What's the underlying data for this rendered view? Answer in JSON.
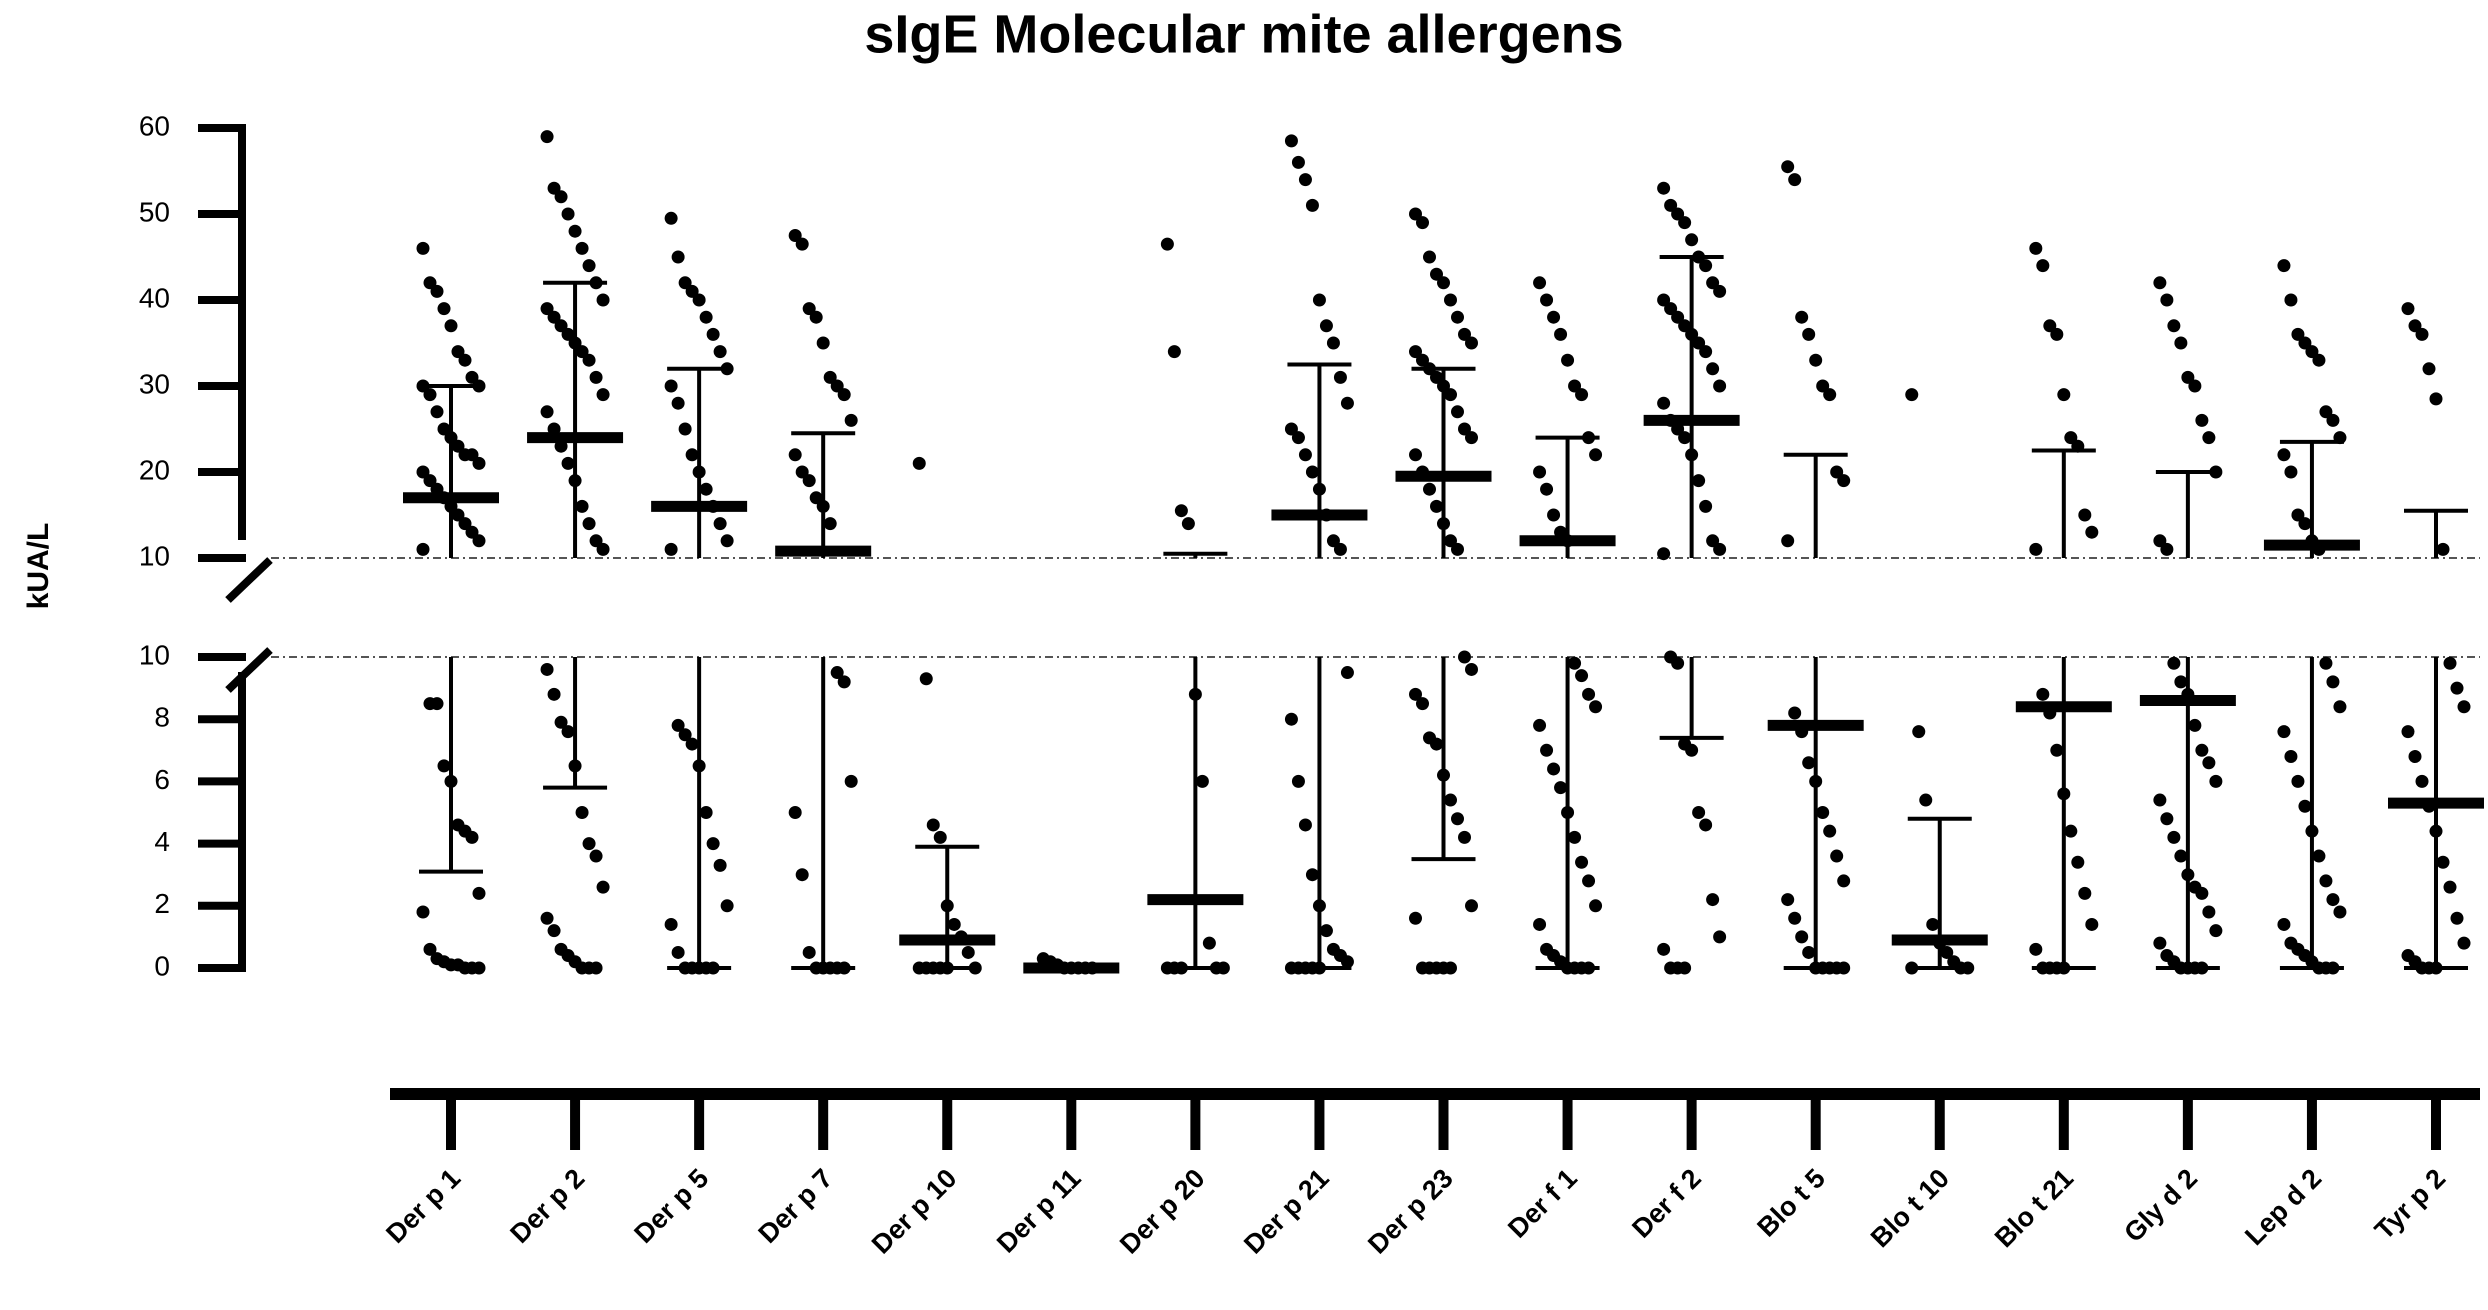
{
  "chart_data": {
    "type": "dot-plot-broken-axis",
    "title": "sIgE Molecular mite allergens",
    "y_label": "kUA/L",
    "categories": [
      "Der p 1",
      "Der p 2",
      "Der p 5",
      "Der p 7",
      "Der p 10",
      "Der p 11",
      "Der p 20",
      "Der p 21",
      "Der p 23",
      "Der f 1",
      "Der f 2",
      "Blo t 5",
      "Blo t 10",
      "Blo t 21",
      "Gly d 2",
      "Lep d 2",
      "Tyr p 2"
    ],
    "color": "#000000",
    "ylim": [
      0,
      10
    ],
    "yticks": [
      0,
      2,
      4,
      6,
      8,
      10
    ],
    "ylim_upper": [
      10,
      60
    ],
    "yticks_upper": [
      10,
      20,
      30,
      40,
      50,
      60
    ],
    "points": [
      [
        46,
        42,
        41,
        39,
        37,
        34,
        33,
        31,
        30,
        30,
        29,
        27,
        25,
        24,
        23,
        22,
        22,
        21,
        20,
        19,
        18,
        17,
        16,
        15,
        14,
        13,
        12,
        11,
        8.5,
        8.5,
        6.5,
        6,
        4.6,
        4.4,
        4.2,
        2.4,
        1.8,
        0.6,
        0.3,
        0.2,
        0.1,
        0.1,
        0,
        0,
        0
      ],
      [
        59,
        53,
        52,
        50,
        48,
        46,
        44,
        42,
        40,
        39,
        38,
        37,
        36,
        35,
        34,
        33,
        31,
        29,
        27,
        25,
        23,
        21,
        19,
        16,
        14,
        12,
        11,
        9.6,
        8.8,
        7.9,
        7.6,
        6.5,
        5,
        4,
        3.6,
        2.6,
        1.6,
        1.2,
        0.6,
        0.4,
        0.2,
        0,
        0,
        0
      ],
      [
        49.5,
        45,
        42,
        41,
        40,
        38,
        36,
        34,
        32,
        30,
        28,
        25,
        22,
        20,
        18,
        16,
        14,
        12,
        11,
        7.8,
        7.5,
        7.2,
        6.5,
        5,
        4,
        3.3,
        2,
        1.4,
        0.5,
        0,
        0,
        0,
        0,
        0
      ],
      [
        47.5,
        46.5,
        39,
        38,
        35,
        31,
        30,
        29,
        26,
        22,
        20,
        19,
        17,
        16,
        14,
        9.5,
        9.2,
        6,
        5,
        3,
        0.5,
        0,
        0,
        0,
        0,
        0
      ],
      [
        21,
        9.3,
        4.6,
        4.2,
        2,
        1.4,
        1,
        0.5,
        0,
        0,
        0,
        0,
        0,
        0
      ],
      [
        0.3,
        0.2,
        0.1,
        0,
        0,
        0,
        0,
        0
      ],
      [
        46.5,
        34,
        15.5,
        14,
        8.8,
        6,
        0.8,
        0,
        0,
        0,
        0,
        0
      ],
      [
        58.5,
        56,
        54,
        51,
        40,
        37,
        35,
        31,
        28,
        25,
        24,
        22,
        20,
        18,
        15,
        12,
        11,
        9.5,
        8,
        6,
        4.6,
        3,
        2,
        1.2,
        0.6,
        0.4,
        0.2,
        0,
        0,
        0,
        0,
        0
      ],
      [
        50,
        49,
        45,
        43,
        42,
        40,
        38,
        36,
        35,
        34,
        33,
        32,
        31,
        30,
        29,
        27,
        25,
        24,
        22,
        20,
        18,
        16,
        14,
        12,
        11,
        10,
        9.6,
        8.8,
        8.5,
        7.4,
        7.2,
        6.2,
        5.4,
        4.8,
        4.2,
        2,
        1.6,
        0,
        0,
        0,
        0,
        0
      ],
      [
        42,
        40,
        38,
        36,
        33,
        30,
        29,
        24,
        22,
        20,
        18,
        15,
        13,
        12,
        9.8,
        9.4,
        8.8,
        8.4,
        7.8,
        7,
        6.4,
        5.8,
        5,
        4.2,
        3.4,
        2.8,
        2,
        1.4,
        0.6,
        0.4,
        0.2,
        0,
        0,
        0,
        0
      ],
      [
        53,
        51,
        50,
        49,
        47,
        45,
        44,
        42,
        41,
        40,
        39,
        38,
        37,
        36,
        35,
        34,
        32,
        30,
        28,
        26,
        25,
        24,
        22,
        19,
        16,
        12,
        11,
        10.5,
        10,
        9.8,
        7.2,
        7,
        5,
        4.6,
        2.2,
        1,
        0.6,
        0,
        0,
        0
      ],
      [
        55.5,
        54,
        38,
        36,
        33,
        30,
        29,
        20,
        19,
        12,
        8.2,
        7.6,
        6.6,
        6,
        5,
        4.4,
        3.6,
        2.8,
        2.2,
        1.6,
        1,
        0.5,
        0,
        0,
        0,
        0,
        0
      ],
      [
        29,
        7.6,
        5.4,
        1.4,
        0.8,
        0.5,
        0.2,
        0,
        0,
        0
      ],
      [
        46,
        44,
        37,
        36,
        29,
        24,
        23,
        15,
        13,
        11,
        8.8,
        8.2,
        7,
        5.6,
        4.4,
        3.4,
        2.4,
        1.4,
        0.6,
        0,
        0,
        0,
        0
      ],
      [
        42,
        40,
        37,
        35,
        31,
        30,
        26,
        24,
        20,
        12,
        11,
        9.8,
        9.2,
        8.8,
        7.8,
        7,
        6.6,
        6,
        5.4,
        4.8,
        4.2,
        3.6,
        3,
        2.6,
        2.4,
        1.8,
        1.2,
        0.8,
        0.4,
        0.2,
        0,
        0,
        0,
        0
      ],
      [
        44,
        40,
        36,
        35,
        34,
        33,
        27,
        26,
        24,
        22,
        20,
        15,
        14,
        12,
        11,
        9.8,
        9.2,
        8.4,
        7.6,
        6.8,
        6,
        5.2,
        4.4,
        3.6,
        2.8,
        2.2,
        1.8,
        1.4,
        0.8,
        0.6,
        0.4,
        0.2,
        0,
        0,
        0
      ],
      [
        39,
        37,
        36,
        32,
        28.5,
        11,
        9.8,
        9,
        8.4,
        7.6,
        6.8,
        6,
        5.2,
        4.4,
        3.4,
        2.6,
        1.6,
        0.8,
        0.4,
        0.2,
        0,
        0,
        0
      ]
    ],
    "medians": [
      17,
      24,
      16,
      10.8,
      0.9,
      0,
      2.2,
      15,
      19.5,
      12,
      26,
      7.8,
      0.9,
      8.4,
      8.6,
      11.5,
      5.3
    ],
    "q1": [
      3.1,
      5.8,
      0,
      0,
      0,
      0,
      0,
      0,
      3.5,
      0,
      7.4,
      0,
      0,
      0,
      0,
      0,
      0
    ],
    "q3": [
      30,
      42,
      32,
      24.5,
      3.9,
      0,
      10.5,
      32.5,
      32,
      24,
      45,
      22,
      4.8,
      22.5,
      20,
      23.5,
      15.5
    ]
  }
}
